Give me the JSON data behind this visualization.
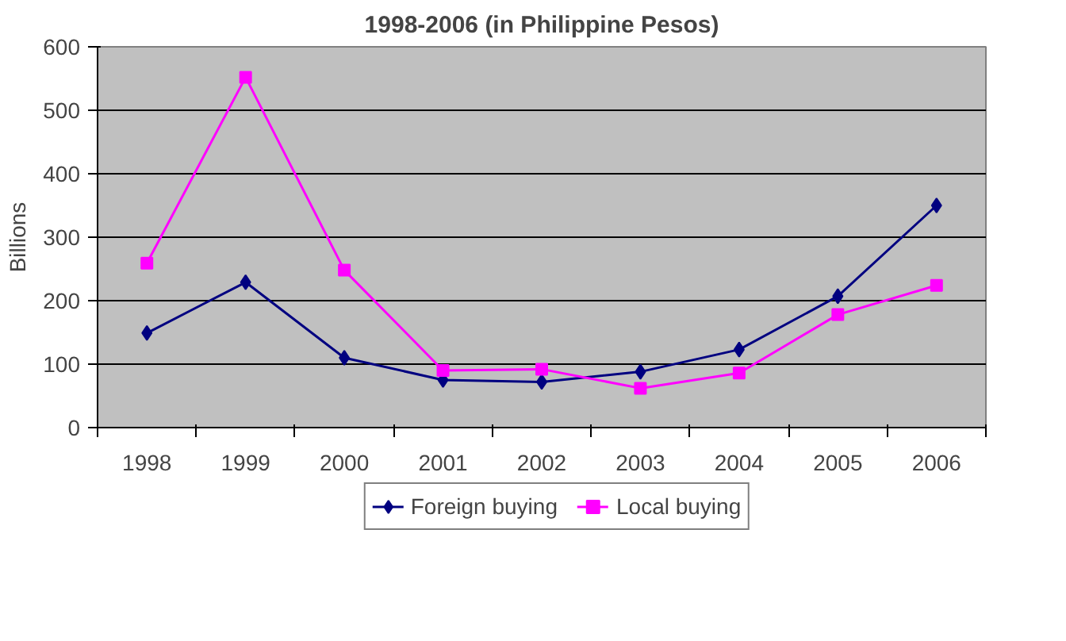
{
  "chart_data": {
    "type": "line",
    "title": "1998-2006 (in Philippine Pesos)",
    "ylabel": "Billions",
    "categories": [
      "1998",
      "1999",
      "2000",
      "2001",
      "2002",
      "2003",
      "2004",
      "2005",
      "2006"
    ],
    "series": [
      {
        "name": "Foreign buying",
        "color": "#000080",
        "marker": "diamond",
        "values": [
          149,
          229,
          110,
          75,
          72,
          88,
          123,
          207,
          350
        ]
      },
      {
        "name": "Local buying",
        "color": "#ff00ff",
        "marker": "square",
        "values": [
          259,
          552,
          248,
          90,
          92,
          62,
          86,
          178,
          224
        ]
      }
    ],
    "ylim": [
      0,
      600
    ],
    "yticks": [
      0,
      100,
      200,
      300,
      400,
      500,
      600
    ],
    "grid": "y",
    "legend": "bottom"
  }
}
